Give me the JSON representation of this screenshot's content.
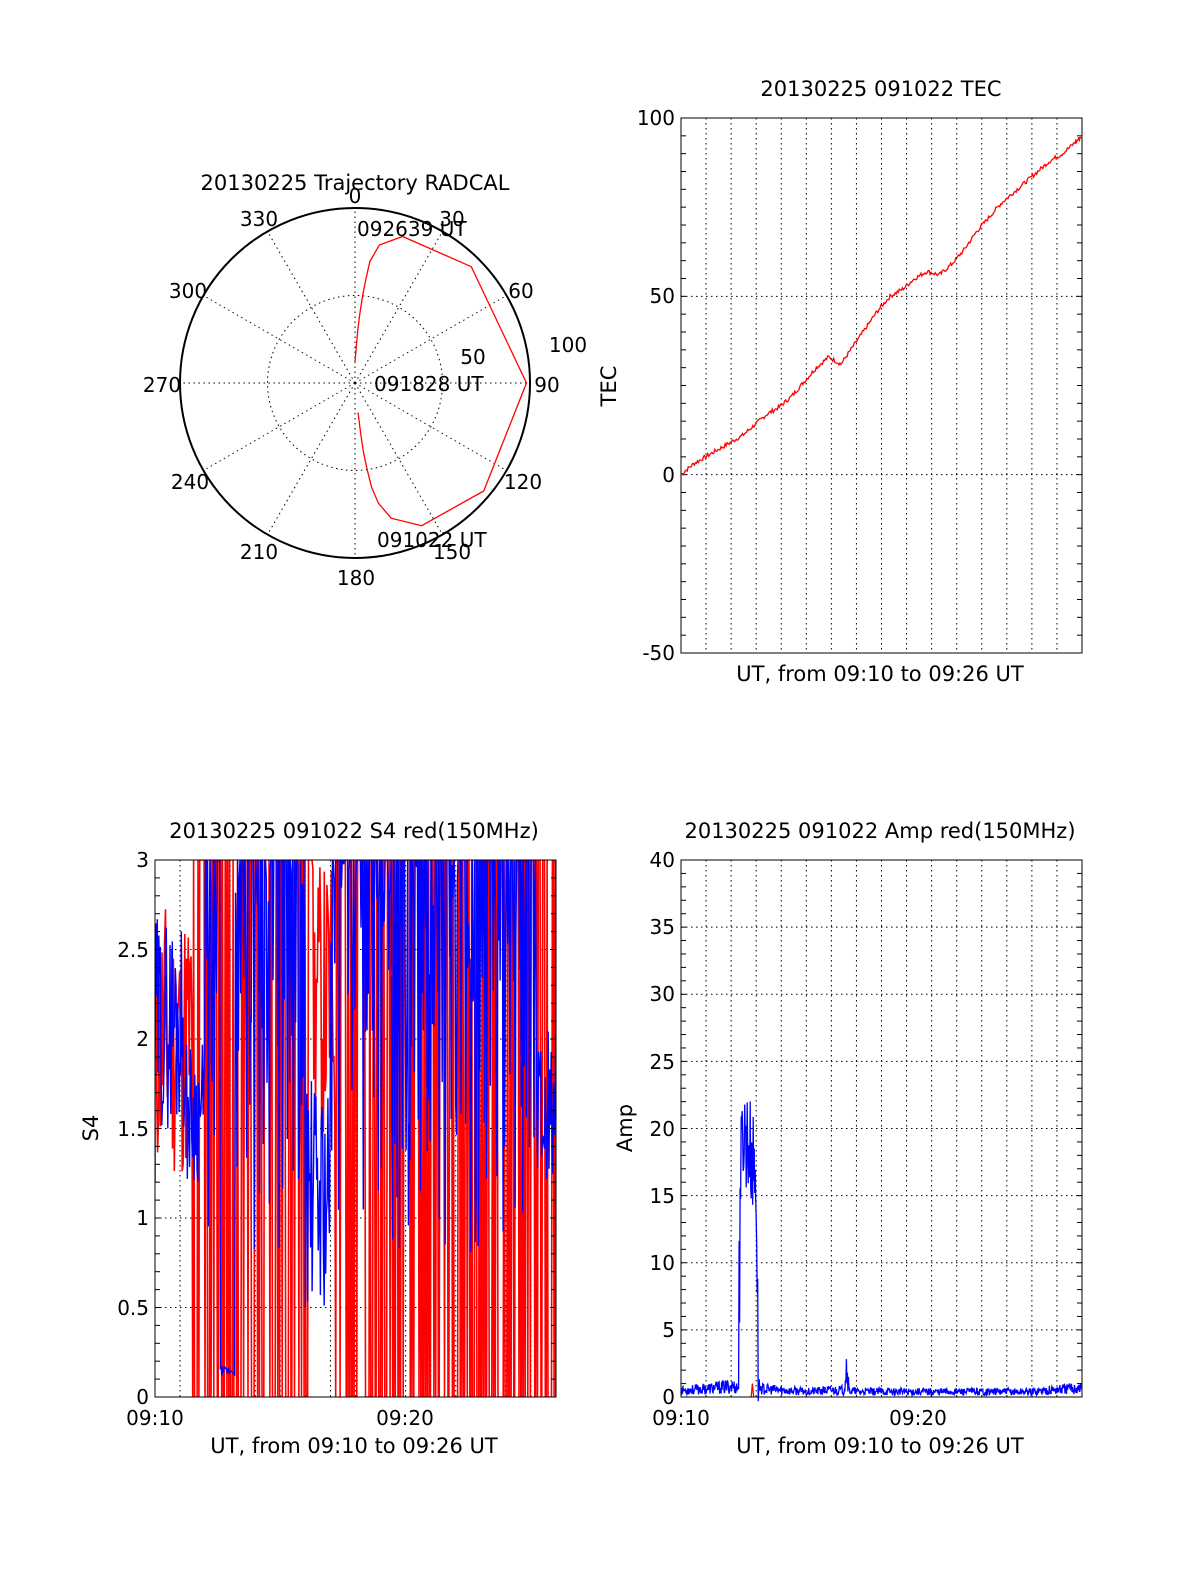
{
  "chart_data": [
    {
      "type": "polar",
      "title": "20130225 Trajectory RADCAL",
      "angle_labels": [
        "0",
        "30",
        "60",
        "90",
        "120",
        "150",
        "180",
        "210",
        "240",
        "270",
        "300",
        "330"
      ],
      "radius_labels": [
        "50",
        "100"
      ],
      "rmax": 100,
      "annotations": [
        {
          "label": "092639 UT",
          "az": 0,
          "elev": 88
        },
        {
          "label": "091828 UT",
          "az": 90,
          "elev": 2
        },
        {
          "label": "091022 UT",
          "az": 174,
          "elev": 83
        }
      ],
      "trajectory": [
        [
          0,
          88
        ],
        [
          2,
          80
        ],
        [
          3,
          70
        ],
        [
          4,
          60
        ],
        [
          5,
          50
        ],
        [
          6,
          40
        ],
        [
          7,
          30
        ],
        [
          10,
          20
        ],
        [
          18,
          12
        ],
        [
          45,
          6
        ],
        [
          90,
          2
        ],
        [
          130,
          4
        ],
        [
          155,
          10
        ],
        [
          165,
          20
        ],
        [
          169,
          30
        ],
        [
          171,
          40
        ],
        [
          172,
          50
        ],
        [
          173,
          60
        ],
        [
          173.5,
          70
        ],
        [
          174,
          80
        ],
        [
          174,
          83
        ]
      ],
      "colors": {
        "trajectory": "#ff0000"
      }
    },
    {
      "type": "line",
      "title": "20130225 091022 TEC",
      "xlabel": "UT, from 09:10 to 09:26 UT",
      "ylabel": "TEC",
      "xlim": [
        0,
        16.3
      ],
      "ylim": [
        -50,
        100
      ],
      "yticks": [
        "-50",
        "0",
        "50",
        "100"
      ],
      "grid": true,
      "series": [
        {
          "color": "#ff0000",
          "x": [
            0,
            0.5,
            1,
            1.5,
            2,
            2.5,
            3,
            3.5,
            4,
            4.5,
            5,
            5.5,
            6,
            6.5,
            7,
            7.5,
            8,
            8.5,
            9,
            9.5,
            10,
            10.5,
            11,
            11.5,
            12,
            12.5,
            13,
            13.5,
            14,
            14.5,
            15,
            15.5,
            16,
            16.3
          ],
          "y": [
            0,
            3,
            5,
            7,
            9,
            11,
            14,
            17,
            19,
            22,
            26,
            30,
            33,
            31,
            36,
            41,
            46,
            50,
            52,
            55,
            57,
            56,
            59,
            63,
            68,
            72,
            76,
            79,
            82,
            85,
            88,
            90,
            93,
            95
          ]
        }
      ]
    },
    {
      "type": "line",
      "title": "20130225 091022 S4 red(150MHz)",
      "xlabel": "UT, from 09:10 to 09:26 UT",
      "ylabel": "S4",
      "xlim": [
        0,
        16
      ],
      "ylim": [
        0,
        3
      ],
      "xticks": [
        "09:10",
        "09:20"
      ],
      "yticks": [
        "0",
        "0.5",
        "1",
        "1.5",
        "2",
        "2.5",
        "3"
      ],
      "grid": true,
      "series": [
        {
          "color": "#ff0000",
          "style": "dense-vertical",
          "description_x_range": [
            0,
            16
          ]
        },
        {
          "color": "#0000ff",
          "style": "dense-vertical",
          "description_x_range": [
            0,
            16
          ]
        }
      ]
    },
    {
      "type": "line",
      "title": "20130225 091022 Amp red(150MHz)",
      "xlabel": "UT, from 09:10 to 09:26 UT",
      "ylabel": "Amp",
      "xlim": [
        0,
        16
      ],
      "ylim": [
        0,
        40
      ],
      "xticks": [
        "09:10",
        "09:20"
      ],
      "yticks": [
        "0",
        "5",
        "10",
        "15",
        "20",
        "25",
        "30",
        "35",
        "40"
      ],
      "grid": true,
      "series": [
        {
          "color": "#0000ff",
          "x": [
            0,
            1,
            2,
            2.3,
            2.35,
            2.5,
            2.8,
            3.0,
            3.1,
            3.2,
            4,
            5,
            6,
            6.5,
            6.6,
            6.7,
            7,
            8,
            10,
            12,
            14,
            16
          ],
          "y": [
            0.5,
            0.6,
            0.8,
            0.7,
            18,
            22,
            20,
            18,
            0.9,
            0.6,
            0.5,
            0.4,
            0.5,
            0.5,
            2.5,
            0.5,
            0.4,
            0.4,
            0.4,
            0.4,
            0.4,
            0.7
          ]
        },
        {
          "color": "#ff0000",
          "x": [
            2.8,
            2.85,
            2.9
          ],
          "y": [
            0,
            1,
            0
          ]
        }
      ]
    }
  ]
}
